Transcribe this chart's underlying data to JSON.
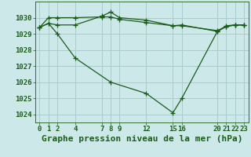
{
  "background_color": "#cce8e8",
  "grid_color": "#aacccc",
  "line_color": "#1a5c1a",
  "title": "Graphe pression niveau de la mer (hPa)",
  "xlim": [
    -0.5,
    23.5
  ],
  "ylim": [
    1023.5,
    1031.0
  ],
  "xticks": [
    0,
    1,
    2,
    4,
    7,
    8,
    9,
    12,
    15,
    16,
    20,
    21,
    22,
    23
  ],
  "yticks": [
    1024,
    1025,
    1026,
    1027,
    1028,
    1029,
    1030
  ],
  "line1_x": [
    0,
    1,
    2,
    4,
    7,
    8,
    9,
    12,
    15,
    16,
    20,
    21,
    22,
    23
  ],
  "line1_y": [
    1029.4,
    1030.0,
    1030.0,
    1030.0,
    1030.05,
    1030.05,
    1029.9,
    1029.7,
    1029.5,
    1029.5,
    1029.2,
    1029.45,
    1029.55,
    1029.55
  ],
  "line2_x": [
    0,
    1,
    2,
    4,
    7,
    8,
    9,
    12,
    15,
    16,
    20,
    21,
    22,
    23
  ],
  "line2_y": [
    1029.4,
    1029.65,
    1029.55,
    1029.55,
    1030.1,
    1030.35,
    1030.0,
    1029.85,
    1029.5,
    1029.55,
    1029.15,
    1029.5,
    1029.55,
    1029.55
  ],
  "line3_x": [
    0,
    1,
    2,
    4,
    8,
    12,
    15,
    16,
    20,
    21,
    22,
    23
  ],
  "line3_y": [
    1029.4,
    1029.65,
    1029.0,
    1027.5,
    1026.0,
    1025.3,
    1024.1,
    1025.0,
    1029.15,
    1029.45,
    1029.55,
    1029.55
  ],
  "marker": "+",
  "marker_size": 4,
  "linewidth": 0.9,
  "title_fontsize": 8,
  "tick_fontsize": 6.5
}
